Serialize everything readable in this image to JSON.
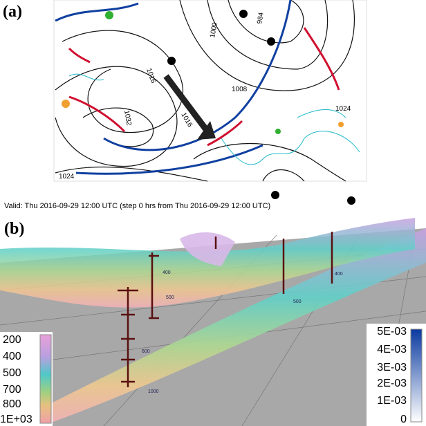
{
  "panel_a": {
    "label": "(a)",
    "contour_labels": [
      "1008",
      "1016",
      "1024",
      "1032",
      "1000",
      "984",
      "1024",
      "1016"
    ],
    "caption": "Valid: Thu 2016-09-29 12:00 UTC (step 0 hrs from Thu 2016-09-29 12:00 UTC)"
  },
  "panel_b": {
    "label": "(b)",
    "pressure_labels": [
      "400",
      "500",
      "600",
      "1000",
      "400",
      "500"
    ],
    "colorbar_left": {
      "labels": [
        "200",
        "400",
        "500",
        "700",
        "800",
        "1E+03"
      ]
    },
    "colorbar_right": {
      "labels": [
        "5E-03",
        "4E-03",
        "3E-03",
        "2E-03",
        "1E-03",
        "0"
      ]
    }
  }
}
